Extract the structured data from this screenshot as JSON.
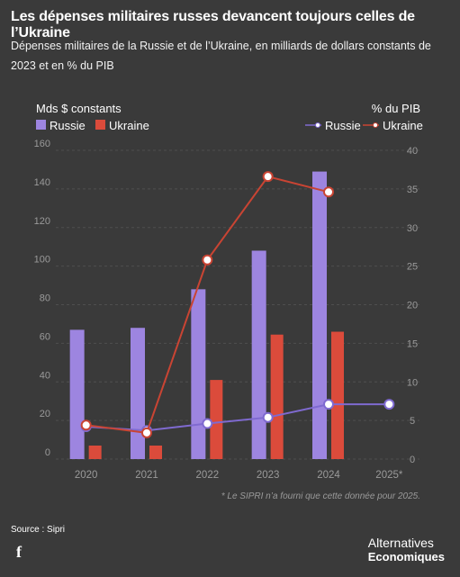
{
  "title": "Les dépenses militaires russes devancent toujours celles de l’Ukraine",
  "subtitle": "Dépenses militaires de la Russie et de l’Ukraine, en milliards de dollars constants de 2023 et en % du PIB",
  "source": "Source : Sipri",
  "social": {
    "facebook_label": "f"
  },
  "brand": {
    "line1": "Alternatives",
    "line2": "Economiques"
  },
  "colors": {
    "russia_bar": "#9d85e0",
    "ukraine_bar": "#db4b3b",
    "russia_line": "#7f6ad0",
    "ukraine_line": "#c94433",
    "background": "#3a3a3a"
  },
  "chart_data": {
    "type": "bar",
    "left_axis_label": "Mds $ constants",
    "right_axis_label": "% du PIB",
    "categories": [
      "2020",
      "2021",
      "2022",
      "2023",
      "2024",
      "2025*"
    ],
    "left_ticks": [
      "0",
      "20",
      "40",
      "60",
      "80",
      "100",
      "120",
      "140",
      "160"
    ],
    "right_ticks": [
      "0",
      "5",
      "10",
      "15",
      "20",
      "25",
      "30",
      "35",
      "40"
    ],
    "ylim_left": [
      0,
      160
    ],
    "ylim_right": [
      0,
      40
    ],
    "bar_series": [
      {
        "name": "Russie",
        "values": [
          67,
          68,
          88,
          108,
          149,
          null
        ]
      },
      {
        "name": "Ukraine",
        "values": [
          7,
          7,
          41,
          64.5,
          66,
          null
        ]
      }
    ],
    "line_series": [
      {
        "name": "Russie",
        "values": [
          4.2,
          3.7,
          4.6,
          5.4,
          7.1,
          7.1
        ]
      },
      {
        "name": "Ukraine",
        "values": [
          4.4,
          3.4,
          25.8,
          36.6,
          34.6,
          null
        ]
      }
    ],
    "footnote": "* Le SIPRI n’a fourni que cette donnée pour 2025.",
    "grid": true,
    "legend_left": "top-left",
    "legend_right": "top-right"
  }
}
